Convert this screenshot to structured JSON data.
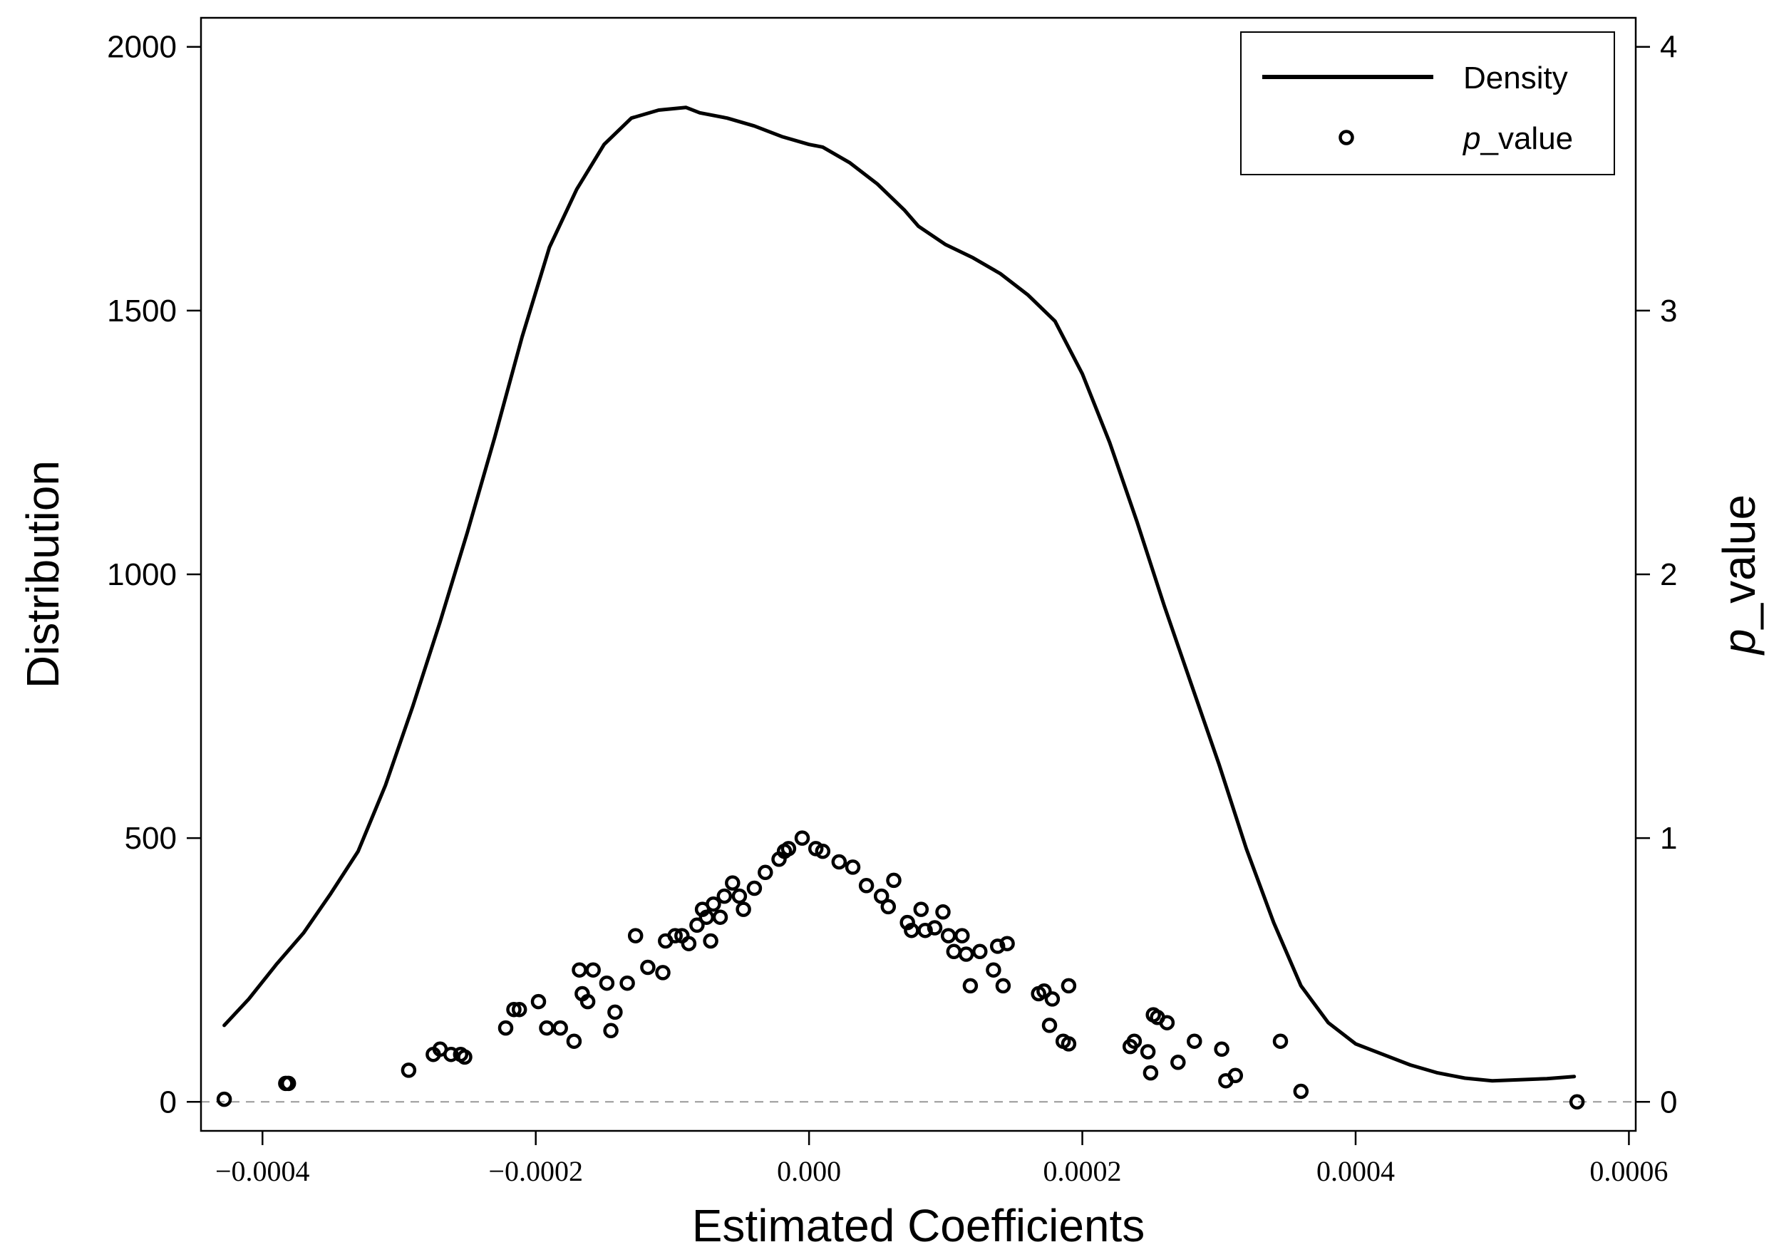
{
  "chart_data": {
    "type": "line",
    "title": "",
    "xlabel": "Estimated Coefficients",
    "ylabel": "Distribution",
    "y2label": "p_value",
    "y2label_parts": {
      "italic": "p",
      "rest": "_value"
    },
    "xlim": [
      -0.000445,
      0.000605
    ],
    "ylim": [
      -55,
      2055
    ],
    "y2lim": [
      -0.11,
      4.11
    ],
    "x_ticks": [
      -0.0004,
      -0.0002,
      0.0,
      0.0002,
      0.0004,
      0.0006
    ],
    "x_tick_labels": [
      "−0.0004",
      "−0.0002",
      "0.000",
      "0.0002",
      "0.0004",
      "0.0006"
    ],
    "y_ticks": [
      0,
      500,
      1000,
      1500,
      2000
    ],
    "y_tick_labels": [
      "0",
      "500",
      "1000",
      "1500",
      "2000"
    ],
    "y2_ticks": [
      0,
      1,
      2,
      3,
      4
    ],
    "y2_tick_labels": [
      "0",
      "1",
      "2",
      "3",
      "4"
    ],
    "reference_line": {
      "y": 0,
      "style": "dashed",
      "color": "#999999"
    },
    "legend": {
      "position": "top-right",
      "entries": [
        {
          "label": "Density",
          "marker": "line"
        },
        {
          "label": "p_value",
          "label_parts": {
            "italic": "p",
            "rest": "_value"
          },
          "marker": "circle"
        }
      ]
    },
    "colors": {
      "line": "#000000",
      "points": "#000000",
      "axis": "#000000"
    },
    "series": [
      {
        "name": "Density",
        "axis": "left",
        "x": [
          -0.000428,
          -0.00041,
          -0.00039,
          -0.00037,
          -0.00035,
          -0.00033,
          -0.00031,
          -0.00029,
          -0.00027,
          -0.00025,
          -0.00023,
          -0.00021,
          -0.00019,
          -0.00017,
          -0.00015,
          -0.00013,
          -0.00011,
          -9e-05,
          -8e-05,
          -6e-05,
          -4e-05,
          -2e-05,
          0.0,
          1e-05,
          3e-05,
          5e-05,
          7e-05,
          8e-05,
          0.0001,
          0.00012,
          0.00014,
          0.00016,
          0.00018,
          0.0002,
          0.00022,
          0.00024,
          0.00026,
          0.00028,
          0.0003,
          0.00032,
          0.00034,
          0.00036,
          0.00038,
          0.0004,
          0.00042,
          0.00044,
          0.00046,
          0.00048,
          0.0005,
          0.00052,
          0.00054,
          0.00056
        ],
        "y": [
          145,
          195,
          260,
          320,
          395,
          475,
          600,
          750,
          910,
          1080,
          1260,
          1450,
          1620,
          1730,
          1815,
          1865,
          1880,
          1885,
          1875,
          1865,
          1850,
          1830,
          1815,
          1810,
          1780,
          1740,
          1690,
          1660,
          1625,
          1600,
          1570,
          1530,
          1480,
          1380,
          1250,
          1100,
          940,
          790,
          640,
          480,
          340,
          220,
          150,
          110,
          90,
          70,
          55,
          45,
          40,
          42,
          44,
          48
        ]
      },
      {
        "name": "p_value",
        "axis": "right",
        "points": [
          [
            -0.000428,
            0.01
          ],
          [
            -0.000383,
            0.07
          ],
          [
            -0.000381,
            0.07
          ],
          [
            -0.000293,
            0.12
          ],
          [
            -0.000275,
            0.18
          ],
          [
            -0.00027,
            0.2
          ],
          [
            -0.000262,
            0.18
          ],
          [
            -0.000255,
            0.18
          ],
          [
            -0.000252,
            0.17
          ],
          [
            -0.000222,
            0.28
          ],
          [
            -0.000216,
            0.35
          ],
          [
            -0.000212,
            0.35
          ],
          [
            -0.000198,
            0.38
          ],
          [
            -0.000192,
            0.28
          ],
          [
            -0.000182,
            0.28
          ],
          [
            -0.000172,
            0.23
          ],
          [
            -0.000168,
            0.5
          ],
          [
            -0.000166,
            0.41
          ],
          [
            -0.000162,
            0.38
          ],
          [
            -0.000158,
            0.5
          ],
          [
            -0.000148,
            0.45
          ],
          [
            -0.000145,
            0.27
          ],
          [
            -0.000142,
            0.34
          ],
          [
            -0.000133,
            0.45
          ],
          [
            -0.000127,
            0.63
          ],
          [
            -0.000118,
            0.51
          ],
          [
            -0.000107,
            0.49
          ],
          [
            -0.000105,
            0.61
          ],
          [
            -9.8e-05,
            0.63
          ],
          [
            -9.3e-05,
            0.63
          ],
          [
            -8.8e-05,
            0.6
          ],
          [
            -8.2e-05,
            0.67
          ],
          [
            -7.8e-05,
            0.73
          ],
          [
            -7.5e-05,
            0.7
          ],
          [
            -7.2e-05,
            0.61
          ],
          [
            -7e-05,
            0.75
          ],
          [
            -6.5e-05,
            0.7
          ],
          [
            -6.2e-05,
            0.78
          ],
          [
            -5.6e-05,
            0.83
          ],
          [
            -5.1e-05,
            0.78
          ],
          [
            -4.8e-05,
            0.73
          ],
          [
            -4e-05,
            0.81
          ],
          [
            -3.2e-05,
            0.87
          ],
          [
            -2.2e-05,
            0.92
          ],
          [
            -1.8e-05,
            0.95
          ],
          [
            -1.5e-05,
            0.96
          ],
          [
            -5e-06,
            1.0
          ],
          [
            5e-06,
            0.96
          ],
          [
            1e-05,
            0.95
          ],
          [
            2.2e-05,
            0.91
          ],
          [
            3.2e-05,
            0.89
          ],
          [
            4.2e-05,
            0.82
          ],
          [
            5.3e-05,
            0.78
          ],
          [
            5.8e-05,
            0.74
          ],
          [
            6.2e-05,
            0.84
          ],
          [
            7.2e-05,
            0.68
          ],
          [
            7.5e-05,
            0.65
          ],
          [
            8.2e-05,
            0.73
          ],
          [
            8.5e-05,
            0.65
          ],
          [
            9.2e-05,
            0.66
          ],
          [
            9.8e-05,
            0.72
          ],
          [
            0.000102,
            0.63
          ],
          [
            0.000106,
            0.57
          ],
          [
            0.000112,
            0.63
          ],
          [
            0.000115,
            0.56
          ],
          [
            0.000118,
            0.44
          ],
          [
            0.000125,
            0.57
          ],
          [
            0.000135,
            0.5
          ],
          [
            0.000138,
            0.59
          ],
          [
            0.000142,
            0.44
          ],
          [
            0.000145,
            0.6
          ],
          [
            0.000168,
            0.41
          ],
          [
            0.000172,
            0.42
          ],
          [
            0.000176,
            0.29
          ],
          [
            0.000178,
            0.39
          ],
          [
            0.000186,
            0.23
          ],
          [
            0.00019,
            0.22
          ],
          [
            0.00019,
            0.44
          ],
          [
            0.000235,
            0.21
          ],
          [
            0.000238,
            0.23
          ],
          [
            0.000248,
            0.19
          ],
          [
            0.00025,
            0.11
          ],
          [
            0.000252,
            0.33
          ],
          [
            0.000255,
            0.32
          ],
          [
            0.000262,
            0.3
          ],
          [
            0.00027,
            0.15
          ],
          [
            0.000282,
            0.23
          ],
          [
            0.000302,
            0.2
          ],
          [
            0.000305,
            0.08
          ],
          [
            0.000312,
            0.1
          ],
          [
            0.000345,
            0.23
          ],
          [
            0.00036,
            0.04
          ],
          [
            0.000562,
            0.0
          ]
        ]
      }
    ]
  }
}
